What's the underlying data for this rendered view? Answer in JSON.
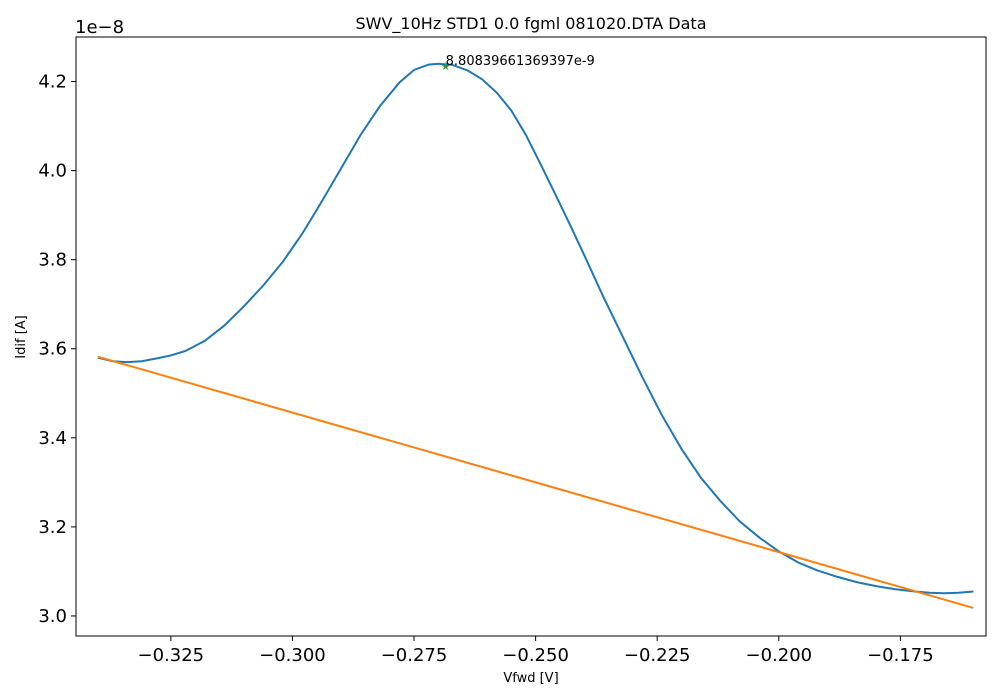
{
  "chart_data": {
    "type": "line",
    "title": "SWV_10Hz STD1 0.0 fgml 081020.DTA Data",
    "xlabel": "Vfwd [V]",
    "ylabel": "Idif [A]",
    "y_offset_label": "1e−8",
    "xlim": [
      -0.3445,
      -0.1574
    ],
    "ylim": [
      2.955,
      4.3
    ],
    "y_unit_scale": 1e-08,
    "x_ticks": [
      -0.325,
      -0.3,
      -0.275,
      -0.25,
      -0.225,
      -0.2,
      -0.175
    ],
    "x_tick_labels": [
      "−0.325",
      "−0.300",
      "−0.275",
      "−0.250",
      "−0.225",
      "−0.200",
      "−0.175"
    ],
    "y_ticks": [
      3.0,
      3.2,
      3.4,
      3.6,
      3.8,
      4.0,
      4.2
    ],
    "y_tick_labels": [
      "3.0",
      "3.2",
      "3.4",
      "3.6",
      "3.8",
      "4.0",
      "4.2"
    ],
    "grid": false,
    "series": [
      {
        "color": "#1f77b4",
        "x": [
          -0.34,
          -0.337,
          -0.334,
          -0.331,
          -0.328,
          -0.325,
          -0.322,
          -0.318,
          -0.314,
          -0.31,
          -0.306,
          -0.302,
          -0.298,
          -0.294,
          -0.29,
          -0.286,
          -0.282,
          -0.278,
          -0.275,
          -0.272,
          -0.27,
          -0.267,
          -0.264,
          -0.261,
          -0.258,
          -0.255,
          -0.252,
          -0.249,
          -0.246,
          -0.243,
          -0.24,
          -0.236,
          -0.232,
          -0.228,
          -0.224,
          -0.22,
          -0.216,
          -0.212,
          -0.208,
          -0.204,
          -0.2,
          -0.196,
          -0.192,
          -0.188,
          -0.184,
          -0.18,
          -0.176,
          -0.172,
          -0.169,
          -0.166,
          -0.163,
          -0.16
        ],
        "y": [
          3.58,
          3.572,
          3.57,
          3.572,
          3.578,
          3.585,
          3.595,
          3.618,
          3.652,
          3.695,
          3.742,
          3.795,
          3.858,
          3.93,
          4.005,
          4.08,
          4.145,
          4.198,
          4.226,
          4.238,
          4.24,
          4.237,
          4.225,
          4.205,
          4.175,
          4.135,
          4.08,
          4.015,
          3.948,
          3.88,
          3.81,
          3.715,
          3.625,
          3.535,
          3.45,
          3.375,
          3.31,
          3.258,
          3.212,
          3.176,
          3.145,
          3.12,
          3.102,
          3.088,
          3.076,
          3.067,
          3.06,
          3.055,
          3.052,
          3.051,
          3.052,
          3.055
        ]
      },
      {
        "color": "#ff7f0e",
        "x": [
          -0.34,
          -0.16
        ],
        "y": [
          3.582,
          3.018
        ]
      }
    ],
    "annotation": {
      "text": "8.80839661369397e-9",
      "x": -0.2685,
      "y": 4.235,
      "marker_color": "#2ca02c"
    }
  }
}
